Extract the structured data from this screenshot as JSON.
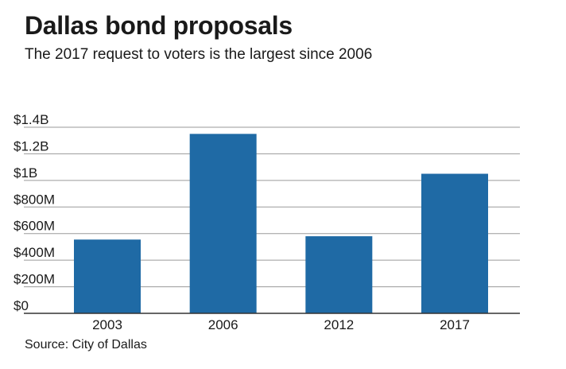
{
  "header": {
    "title": "Dallas bond proposals",
    "subtitle": "The 2017 request to voters is the largest since 2006"
  },
  "footer": {
    "source": "Source: City of Dallas"
  },
  "colors": {
    "bar": "#1f6aa5",
    "grid": "#9a9a9a",
    "axis": "#333333"
  },
  "chart_data": {
    "type": "bar",
    "title": "Dallas bond proposals",
    "subtitle": "The 2017 request to voters is the largest since 2006",
    "xlabel": "",
    "ylabel": "",
    "categories": [
      "2003",
      "2006",
      "2012",
      "2017"
    ],
    "values": [
      555,
      1350,
      580,
      1050
    ],
    "value_units": "millions of dollars",
    "ylim": [
      0,
      1400
    ],
    "yticks": [
      0,
      200,
      400,
      600,
      800,
      1000,
      1200,
      1400
    ],
    "ytick_labels": [
      "$0",
      "$200M",
      "$400M",
      "$600M",
      "$800M",
      "$1B",
      "$1.2B",
      "$1.4B"
    ],
    "grid": true,
    "legend": "none"
  }
}
